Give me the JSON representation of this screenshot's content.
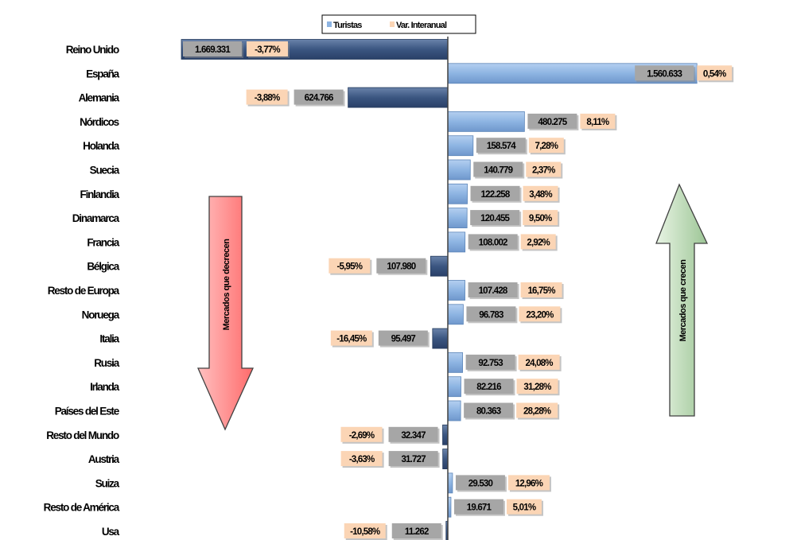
{
  "chart_data": {
    "type": "bar",
    "orientation": "horizontal-diverging",
    "legend_position": "top",
    "legend": [
      "Turistas",
      "Var. Interanual"
    ],
    "categories": [
      "Reino Unido",
      "España",
      "Alemania",
      "Nórdicos",
      "Holanda",
      "Suecia",
      "Finlandia",
      "Dinamarca",
      "Francia",
      "Bélgica",
      "Resto de Europa",
      "Noruega",
      "Italia",
      "Rusia",
      "Irlanda",
      "Países del Este",
      "Resto del Mundo",
      "Austria",
      "Suiza",
      "Resto de América",
      "Usa"
    ],
    "series": [
      {
        "name": "Turistas",
        "values": [
          1669331,
          1560633,
          624766,
          480275,
          158574,
          140779,
          122258,
          120455,
          108002,
          107980,
          107428,
          96783,
          95497,
          92753,
          82216,
          80363,
          32347,
          31727,
          29530,
          19671,
          11262
        ],
        "labels": [
          "1.669.331",
          "1.560.633",
          "624.766",
          "480.275",
          "158.574",
          "140.779",
          "122.258",
          "120.455",
          "108.002",
          "107.980",
          "107.428",
          "96.783",
          "95.497",
          "92.753",
          "82.216",
          "80.363",
          "32.347",
          "31.727",
          "29.530",
          "19.671",
          "11.262"
        ]
      },
      {
        "name": "Var. Interanual",
        "values": [
          -3.77,
          0.54,
          -3.88,
          8.11,
          7.28,
          2.37,
          3.48,
          9.5,
          2.92,
          -5.95,
          16.75,
          23.2,
          -16.45,
          24.08,
          31.28,
          28.28,
          -2.69,
          -3.63,
          12.96,
          5.01,
          -10.58
        ],
        "labels": [
          "-3,77%",
          "0,54%",
          "-3,88%",
          "8,11%",
          "7,28%",
          "2,37%",
          "3,48%",
          "9,50%",
          "2,92%",
          "-5,95%",
          "16,75%",
          "23,20%",
          "-16,45%",
          "24,08%",
          "31,28%",
          "28,28%",
          "-2,69%",
          "-3,63%",
          "12,96%",
          "5,01%",
          "-10,58%"
        ]
      }
    ],
    "annotations": [
      "Mercados que decrecen",
      "Mercados que crecen"
    ],
    "colors": {
      "growing_bar": "#8db4e2",
      "declining_bar": "#3b5681",
      "value_box": "#a6a6a6",
      "pct_box": "#fbd5b5",
      "arrow_down": "#ff8080",
      "arrow_up": "#c3dfbf"
    }
  }
}
